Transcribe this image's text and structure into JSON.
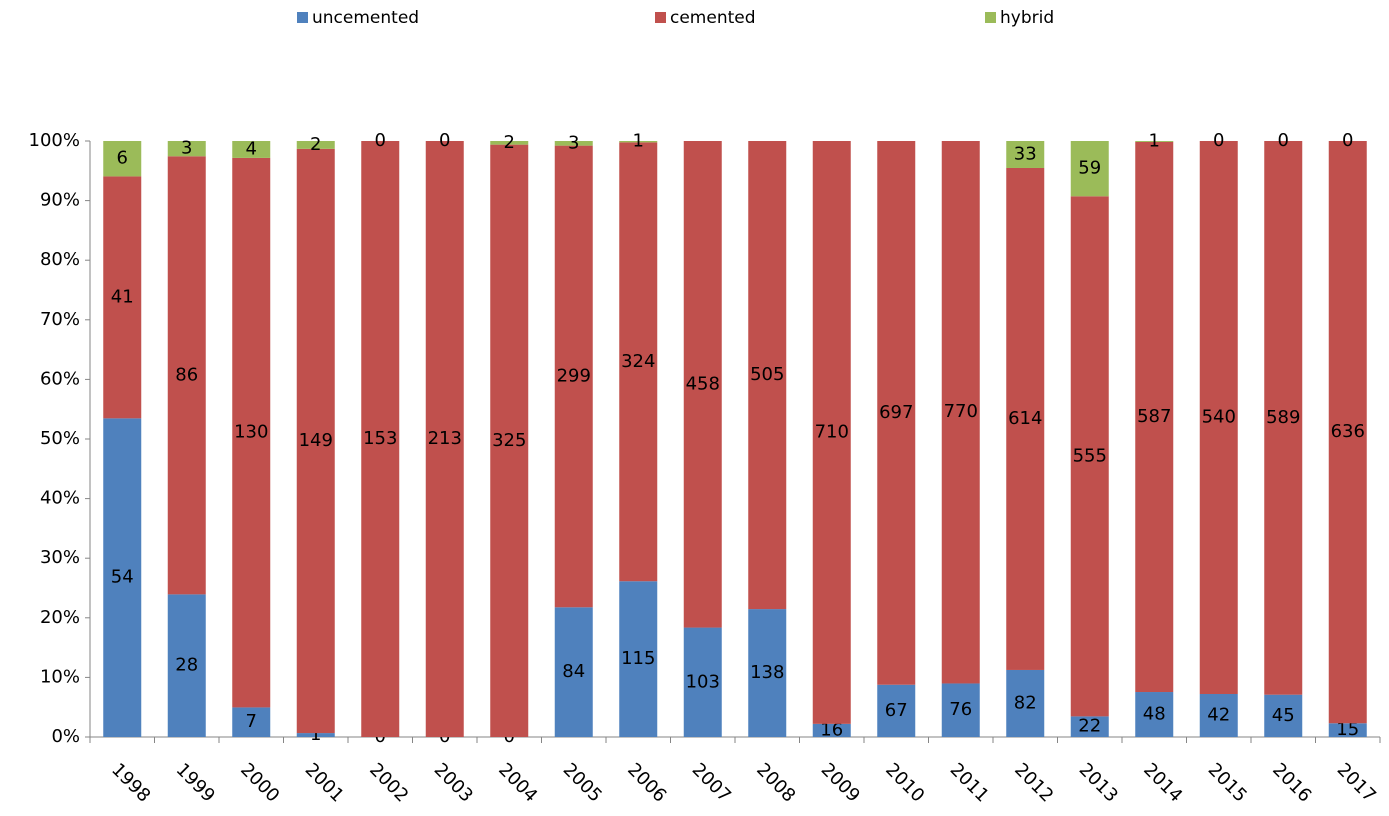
{
  "chart_data": {
    "type": "bar",
    "stacking": "percent",
    "categories": [
      "1998",
      "1999",
      "2000",
      "2001",
      "2002",
      "2003",
      "2004",
      "2005",
      "2006",
      "2007",
      "2008",
      "2009",
      "2010",
      "2011",
      "2012",
      "2013",
      "2014",
      "2015",
      "2016",
      "2017"
    ],
    "series": [
      {
        "name": "uncemented",
        "color": "#4f81bd",
        "values": [
          54,
          28,
          7,
          1,
          0,
          0,
          0,
          84,
          115,
          103,
          138,
          16,
          67,
          76,
          82,
          22,
          48,
          42,
          45,
          15
        ]
      },
      {
        "name": "cemented",
        "color": "#c0504d",
        "values": [
          41,
          86,
          130,
          149,
          153,
          213,
          325,
          299,
          324,
          458,
          505,
          710,
          697,
          770,
          614,
          555,
          587,
          540,
          589,
          636
        ]
      },
      {
        "name": "hybrid",
        "color": "#9bbb59",
        "values": [
          6,
          3,
          4,
          2,
          0,
          0,
          2,
          3,
          1,
          null,
          null,
          null,
          null,
          null,
          33,
          59,
          1,
          0,
          0,
          0
        ]
      }
    ],
    "ylim": [
      0,
      100
    ],
    "yticks": [
      {
        "value": 0,
        "label": "0%"
      },
      {
        "value": 10,
        "label": "10%"
      },
      {
        "value": 20,
        "label": "20%"
      },
      {
        "value": 30,
        "label": "30%"
      },
      {
        "value": 40,
        "label": "40%"
      },
      {
        "value": 50,
        "label": "50%"
      },
      {
        "value": 60,
        "label": "60%"
      },
      {
        "value": 70,
        "label": "70%"
      },
      {
        "value": 80,
        "label": "80%"
      },
      {
        "value": 90,
        "label": "90%"
      },
      {
        "value": 100,
        "label": "100%"
      }
    ],
    "legend": "top"
  }
}
